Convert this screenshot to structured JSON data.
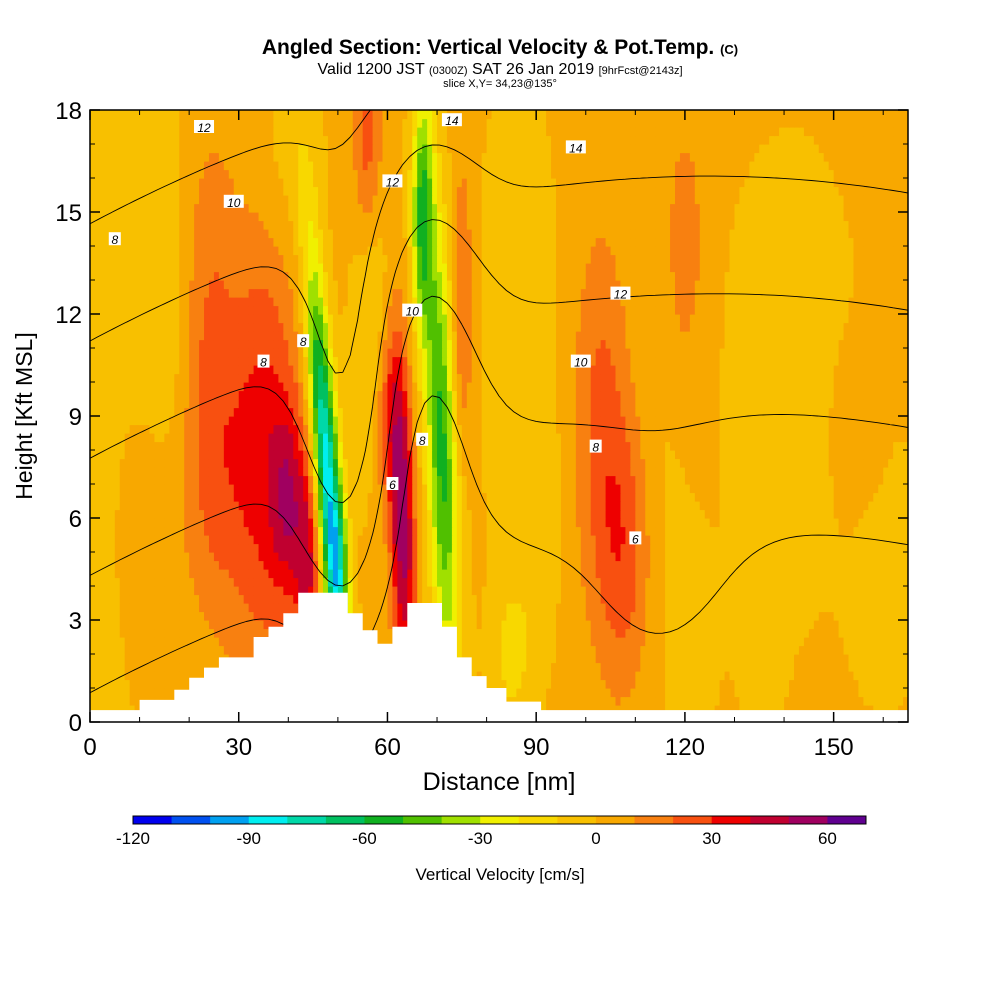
{
  "title": {
    "main": "Angled Section: Vertical Velocity & Pot.Temp.",
    "main_suffix": "(C)",
    "valid_prefix": "Valid 1200 JST",
    "valid_zulu": "(0300Z)",
    "valid_date": "SAT 26 Jan 2019",
    "forecast": "[9hrFcst@2143z]",
    "slice": "slice X,Y= 34,23@135°"
  },
  "chart_data": {
    "type": "heatmap",
    "xlabel": "Distance [nm]",
    "ylabel": "Height [Kft MSL]",
    "xlim": [
      0,
      165
    ],
    "ylim": [
      0,
      18
    ],
    "x_ticks": [
      "0",
      "30",
      "60",
      "90",
      "120",
      "150"
    ],
    "y_ticks": [
      "0",
      "3",
      "6",
      "9",
      "12",
      "15",
      "18"
    ],
    "colorbar": {
      "label": "Vertical Velocity [cm/s]",
      "ticks": [
        "-120",
        "-90",
        "-60",
        "-30",
        "0",
        "30",
        "60"
      ],
      "min": -120,
      "max": 70,
      "step": 10,
      "colors": [
        "#0000ee",
        "#0050f0",
        "#00a0f0",
        "#00eef0",
        "#00d8a8",
        "#00c060",
        "#10b020",
        "#50c000",
        "#a0e000",
        "#f0f000",
        "#f8d800",
        "#f8c000",
        "#f8a800",
        "#f88010",
        "#f85010",
        "#ee0000",
        "#c00030",
        "#a00060",
        "#600090"
      ]
    },
    "terrain": [
      [
        0,
        0.35
      ],
      [
        10,
        0.35
      ],
      [
        10,
        0.65
      ],
      [
        17,
        0.65
      ],
      [
        17,
        0.95
      ],
      [
        20,
        0.95
      ],
      [
        20,
        1.3
      ],
      [
        23,
        1.3
      ],
      [
        23,
        1.6
      ],
      [
        26,
        1.6
      ],
      [
        26,
        1.9
      ],
      [
        33,
        1.9
      ],
      [
        33,
        2.5
      ],
      [
        36,
        2.5
      ],
      [
        36,
        2.8
      ],
      [
        39,
        2.8
      ],
      [
        39,
        3.2
      ],
      [
        42,
        3.2
      ],
      [
        42,
        3.8
      ],
      [
        52,
        3.8
      ],
      [
        52,
        3.2
      ],
      [
        55,
        3.2
      ],
      [
        55,
        2.7
      ],
      [
        58,
        2.7
      ],
      [
        58,
        2.3
      ],
      [
        61,
        2.3
      ],
      [
        61,
        2.8
      ],
      [
        64,
        2.8
      ],
      [
        64,
        3.5
      ],
      [
        71,
        3.5
      ],
      [
        71,
        2.8
      ],
      [
        74,
        2.8
      ],
      [
        74,
        1.9
      ],
      [
        77,
        1.9
      ],
      [
        77,
        1.35
      ],
      [
        80,
        1.35
      ],
      [
        80,
        1.0
      ],
      [
        84,
        1.0
      ],
      [
        84,
        0.6
      ],
      [
        91,
        0.6
      ],
      [
        91,
        0.35
      ],
      [
        165,
        0.35
      ]
    ],
    "velocity_features": [
      {
        "x": 0,
        "y": 9,
        "sx": 90,
        "sy": 40,
        "v": 3
      },
      {
        "x": 5,
        "y": 9,
        "sx": 8,
        "sy": 10,
        "v": -7
      },
      {
        "x": 35,
        "y": 8,
        "sx": 5,
        "sy": 4.5,
        "v": 30
      },
      {
        "x": 40,
        "y": 6.5,
        "sx": 2.5,
        "sy": 2,
        "v": 32
      },
      {
        "x": 25,
        "y": 7,
        "sx": 5,
        "sy": 3,
        "v": 14
      },
      {
        "x": 24,
        "y": 12,
        "sx": 4,
        "sy": 4,
        "v": 15
      },
      {
        "x": 11,
        "y": 6,
        "sx": 4,
        "sy": 3,
        "v": 10
      },
      {
        "x": 48,
        "y": 7,
        "sx": 1.8,
        "sy": 4.5,
        "v": -90,
        "tilt": -0.48
      },
      {
        "x": 50,
        "y": 4.5,
        "sx": 1.5,
        "sy": 1.5,
        "v": -25
      },
      {
        "x": 44,
        "y": 4.5,
        "sx": 1.8,
        "sy": 2,
        "v": 35
      },
      {
        "x": 63,
        "y": 6,
        "sx": 1.7,
        "sy": 3.5,
        "v": 55,
        "tilt": -0.15
      },
      {
        "x": 60,
        "y": 9,
        "sx": 2,
        "sy": 2,
        "v": 25
      },
      {
        "x": 71,
        "y": 8,
        "sx": 2.2,
        "sy": 5,
        "v": -55,
        "tilt": -0.22
      },
      {
        "x": 67,
        "y": 15,
        "sx": 1.5,
        "sy": 2.5,
        "v": -50
      },
      {
        "x": 57,
        "y": 11,
        "sx": 3,
        "sy": 3,
        "v": -15
      },
      {
        "x": 86,
        "y": 12,
        "sx": 5,
        "sy": 4,
        "v": -10
      },
      {
        "x": 75,
        "y": 12,
        "sx": 1.5,
        "sy": 3,
        "v": 22
      },
      {
        "x": 90,
        "y": 6,
        "sx": 4,
        "sy": 3,
        "v": -6
      },
      {
        "x": 85,
        "y": 2,
        "sx": 3,
        "sy": 1.5,
        "v": -15
      },
      {
        "x": 103,
        "y": 9,
        "sx": 4,
        "sy": 4,
        "v": 20
      },
      {
        "x": 108,
        "y": 5,
        "sx": 4,
        "sy": 3,
        "v": 24
      },
      {
        "x": 120,
        "y": 14,
        "sx": 3,
        "sy": 3,
        "v": 14
      },
      {
        "x": 114,
        "y": 6,
        "sx": 5,
        "sy": 4,
        "v": -5
      },
      {
        "x": 122,
        "y": 2.5,
        "sx": 3,
        "sy": 1.5,
        "v": -6
      },
      {
        "x": 135,
        "y": 3.5,
        "sx": 3,
        "sy": 2,
        "v": -7
      },
      {
        "x": 160,
        "y": 4.5,
        "sx": 4,
        "sy": 2,
        "v": -6
      },
      {
        "x": 140,
        "y": 10,
        "sx": 8,
        "sy": 4,
        "v": -5
      },
      {
        "x": 155,
        "y": 8.5,
        "sx": 3,
        "sy": 1.5,
        "v": 10
      },
      {
        "x": 56,
        "y": 17,
        "sx": 2,
        "sy": 2,
        "v": 22
      },
      {
        "x": 40,
        "y": 16.5,
        "sx": 5,
        "sy": 2,
        "v": -8
      },
      {
        "x": 12,
        "y": 17,
        "sx": 5,
        "sy": 2,
        "v": -6
      },
      {
        "x": 15,
        "y": 11,
        "sx": 4,
        "sy": 3,
        "v": -10
      }
    ],
    "contour_levels": [
      2,
      4,
      6,
      8,
      10,
      12,
      14,
      16
    ],
    "contour_labels": [
      {
        "text": "12",
        "x": 23,
        "y": 17.5
      },
      {
        "text": "10",
        "x": 29,
        "y": 15.3
      },
      {
        "text": "8",
        "x": 5,
        "y": 14.2
      },
      {
        "text": "8",
        "x": 43,
        "y": 11.2
      },
      {
        "text": "8",
        "x": 35,
        "y": 10.6
      },
      {
        "text": "14",
        "x": 73,
        "y": 17.7
      },
      {
        "text": "12",
        "x": 61,
        "y": 15.9
      },
      {
        "text": "14",
        "x": 98,
        "y": 16.9
      },
      {
        "text": "10",
        "x": 65,
        "y": 12.1
      },
      {
        "text": "12",
        "x": 107,
        "y": 12.6
      },
      {
        "text": "10",
        "x": 99,
        "y": 10.6
      },
      {
        "text": "8",
        "x": 67,
        "y": 8.3
      },
      {
        "text": "8",
        "x": 102,
        "y": 8.1
      },
      {
        "text": "6",
        "x": 61,
        "y": 7.0
      },
      {
        "text": "6",
        "x": 110,
        "y": 5.4
      }
    ]
  }
}
